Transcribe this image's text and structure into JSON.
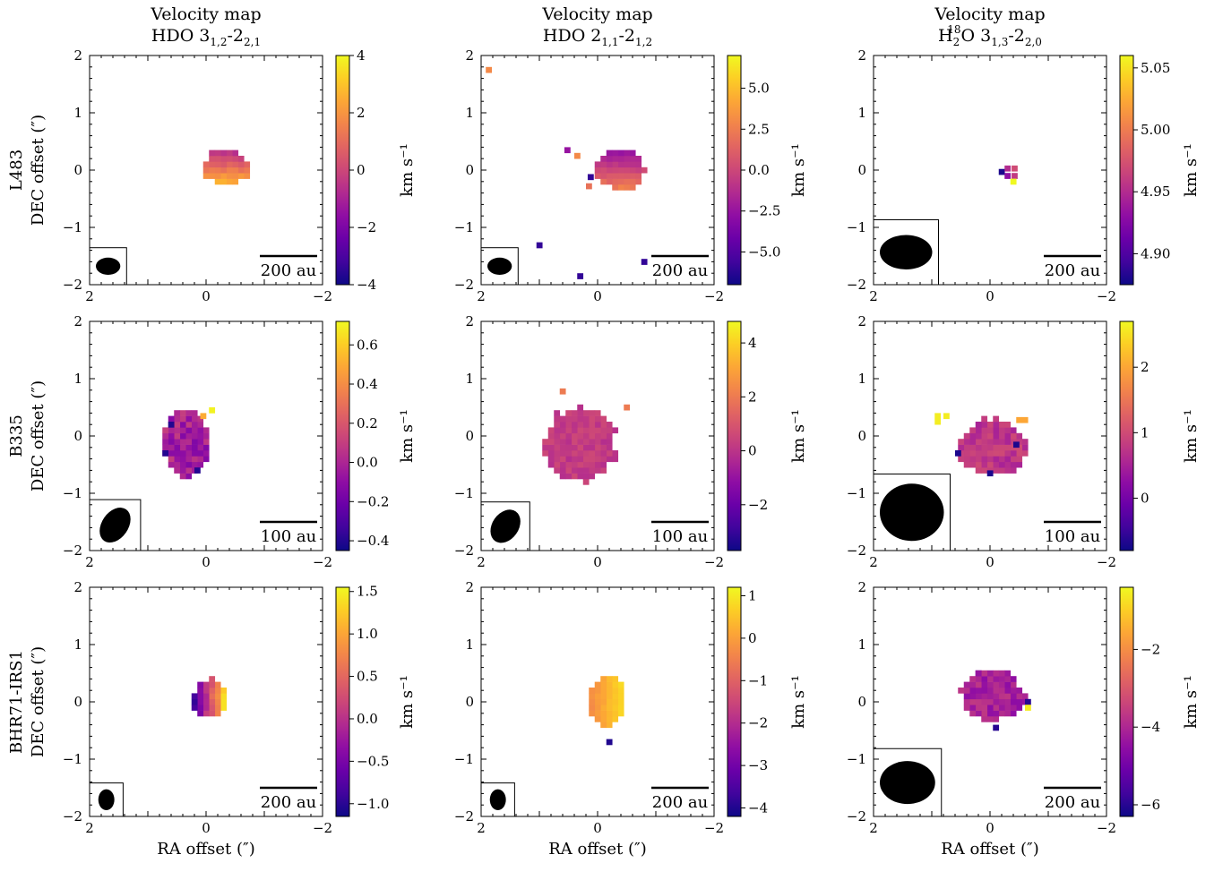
{
  "chart_data": {
    "type": "heatmap",
    "columns": [
      {
        "title_line1": "Velocity map",
        "title_line2_base": "HDO 3",
        "title_sub1": "1,2",
        "title_mid": "-2",
        "title_sub2": "2,1"
      },
      {
        "title_line1": "Velocity map",
        "title_line2_base": "HDO 2",
        "title_sub1": "1,1",
        "title_mid": "-2",
        "title_sub2": "1,2"
      },
      {
        "title_line1": "Velocity map",
        "title_line2_pre": "H",
        "title_sub0": "2",
        "title_sup0": "18",
        "title_line2_base": "O 3",
        "title_sub1": "1,3",
        "title_mid": "-2",
        "title_sub2": "2,0"
      }
    ],
    "rows": [
      {
        "source": "L483",
        "ylabel": "DEC offset (″)"
      },
      {
        "source": "B335",
        "ylabel": "DEC offset (″)"
      },
      {
        "source": "BHR71-IRS1",
        "ylabel": "DEC offset (″)"
      }
    ],
    "xlabel": "RA offset (″)",
    "colorbar_label": "km s⁻¹",
    "colormap": "plasma",
    "xlim": [
      2,
      -2
    ],
    "ylim": [
      -2,
      2
    ],
    "xticks": [
      2,
      0,
      -2
    ],
    "yticks": [
      2,
      1,
      0,
      -1,
      -2
    ],
    "panels": [
      {
        "row": 0,
        "col": 0,
        "scalebar": "200 au",
        "beam": {
          "major": 0.42,
          "minor": 0.3,
          "pa_deg": 90
        },
        "vmin": -4,
        "vmax": 4,
        "cbar_ticks": [
          "4",
          "2",
          "0",
          "−2",
          "−4"
        ],
        "cbar_values": [
          4,
          2,
          0,
          -2,
          -4
        ],
        "blobs": [
          {
            "cx": -0.35,
            "cy": 0.05,
            "rx": 0.38,
            "ry": 0.33,
            "gradient": "y",
            "low": -1,
            "high": 3
          }
        ],
        "pixels": []
      },
      {
        "row": 0,
        "col": 1,
        "scalebar": "200 au",
        "beam": {
          "major": 0.42,
          "minor": 0.3,
          "pa_deg": 90
        },
        "vmin": -7,
        "vmax": 7,
        "cbar_ticks": [
          "5.0",
          "2.5",
          "0.0",
          "−2.5",
          "−5.0"
        ],
        "cbar_values": [
          5,
          2.5,
          0,
          -2.5,
          -5
        ],
        "blobs": [
          {
            "cx": -0.4,
            "cy": 0.0,
            "rx": 0.42,
            "ry": 0.37,
            "gradient": "y",
            "low": -3,
            "high": 3
          }
        ],
        "pixels": [
          {
            "x": 1.87,
            "y": 1.75,
            "v": 3
          },
          {
            "x": 0.52,
            "y": 0.35,
            "v": -2.5
          },
          {
            "x": 0.35,
            "y": 0.25,
            "v": 3
          },
          {
            "x": 0.12,
            "y": -0.12,
            "v": -6
          },
          {
            "x": 0.15,
            "y": -0.28,
            "v": 2
          },
          {
            "x": 1.0,
            "y": -1.31,
            "v": -6
          },
          {
            "x": -0.8,
            "y": -1.6,
            "v": -6
          },
          {
            "x": 0.3,
            "y": -1.85,
            "v": -6
          }
        ]
      },
      {
        "row": 0,
        "col": 2,
        "scalebar": "200 au",
        "beam": {
          "major": 0.9,
          "minor": 0.6,
          "pa_deg": 90
        },
        "vmin": 4.875,
        "vmax": 5.06,
        "cbar_ticks": [
          "5.05",
          "5.00",
          "4.95",
          "4.90"
        ],
        "cbar_values": [
          5.05,
          5.0,
          4.95,
          4.9
        ],
        "blobs": [],
        "pixels": [
          {
            "x": -0.2,
            "y": -0.03,
            "v": 4.88
          },
          {
            "x": -0.3,
            "y": 0.03,
            "v": 4.95
          },
          {
            "x": -0.42,
            "y": 0.03,
            "v": 4.97
          },
          {
            "x": -0.3,
            "y": -0.1,
            "v": 4.93
          },
          {
            "x": -0.42,
            "y": -0.1,
            "v": 4.96
          },
          {
            "x": -0.4,
            "y": -0.2,
            "v": 5.06
          }
        ]
      },
      {
        "row": 1,
        "col": 0,
        "scalebar": "100 au",
        "beam": {
          "major": 0.66,
          "minor": 0.46,
          "pa_deg": 35
        },
        "vmin": -0.45,
        "vmax": 0.72,
        "cbar_ticks": [
          "0.6",
          "0.4",
          "0.2",
          "0.0",
          "−0.2",
          "−0.4"
        ],
        "cbar_values": [
          0.6,
          0.4,
          0.2,
          0.0,
          -0.2,
          -0.4
        ],
        "blobs": [
          {
            "cx": 0.35,
            "cy": -0.1,
            "rx": 0.42,
            "ry": 0.6,
            "gradient": "noise",
            "low": -0.15,
            "high": 0.1
          }
        ],
        "pixels": [
          {
            "x": -0.1,
            "y": 0.45,
            "v": 0.7
          },
          {
            "x": 0.05,
            "y": 0.35,
            "v": 0.5
          },
          {
            "x": 0.7,
            "y": -0.3,
            "v": -0.4
          },
          {
            "x": 0.6,
            "y": 0.2,
            "v": -0.4
          },
          {
            "x": 0.15,
            "y": -0.6,
            "v": -0.4
          }
        ]
      },
      {
        "row": 1,
        "col": 1,
        "scalebar": "100 au",
        "beam": {
          "major": 0.62,
          "minor": 0.46,
          "pa_deg": 35
        },
        "vmin": -3.7,
        "vmax": 4.8,
        "cbar_ticks": [
          "4",
          "2",
          "0",
          "−2"
        ],
        "cbar_values": [
          4,
          2,
          0,
          -2
        ],
        "blobs": [
          {
            "cx": 0.3,
            "cy": -0.15,
            "rx": 0.62,
            "ry": 0.65,
            "gradient": "noise",
            "low": -0.2,
            "high": 0.6
          }
        ],
        "pixels": [
          {
            "x": 0.6,
            "y": 0.78,
            "v": 2
          },
          {
            "x": -0.5,
            "y": 0.5,
            "v": 2
          }
        ]
      },
      {
        "row": 1,
        "col": 2,
        "scalebar": "100 au",
        "beam": {
          "major": 1.1,
          "minor": 1.0,
          "pa_deg": 90
        },
        "vmin": -0.8,
        "vmax": 2.7,
        "cbar_ticks": [
          "2",
          "1",
          "0"
        ],
        "cbar_values": [
          2,
          1,
          0
        ],
        "blobs": [
          {
            "cx": -0.05,
            "cy": -0.2,
            "rx": 0.6,
            "ry": 0.48,
            "gradient": "noise",
            "low": 0.5,
            "high": 1.0
          }
        ],
        "pixels": [
          {
            "x": 0.9,
            "y": 0.35,
            "v": 2.6
          },
          {
            "x": 0.75,
            "y": 0.35,
            "v": 2.6
          },
          {
            "x": 0.9,
            "y": 0.25,
            "v": 2.6
          },
          {
            "x": -0.6,
            "y": 0.28,
            "v": 2
          },
          {
            "x": -0.5,
            "y": 0.28,
            "v": 2
          },
          {
            "x": 0.55,
            "y": -0.3,
            "v": -0.7
          },
          {
            "x": 0.0,
            "y": -0.65,
            "v": -0.7
          },
          {
            "x": -0.45,
            "y": -0.15,
            "v": -0.7
          }
        ]
      },
      {
        "row": 2,
        "col": 0,
        "scalebar": "200 au",
        "beam": {
          "major": 0.36,
          "minor": 0.28,
          "pa_deg": 0
        },
        "vmin": -1.15,
        "vmax": 1.55,
        "cbar_ticks": [
          "1.5",
          "1.0",
          "0.5",
          "0.0",
          "−0.5",
          "−1.0"
        ],
        "cbar_values": [
          1.5,
          1.0,
          0.5,
          0.0,
          -0.5,
          -1.0
        ],
        "blobs": [
          {
            "cx": -0.05,
            "cy": 0.05,
            "rx": 0.28,
            "ry": 0.37,
            "gradient": "x",
            "low": -1.0,
            "high": 1.4
          }
        ],
        "pixels": []
      },
      {
        "row": 2,
        "col": 1,
        "scalebar": "200 au",
        "beam": {
          "major": 0.36,
          "minor": 0.28,
          "pa_deg": 0
        },
        "vmin": -4.2,
        "vmax": 1.2,
        "cbar_ticks": [
          "1",
          "0",
          "−1",
          "−2",
          "−3",
          "−4"
        ],
        "cbar_values": [
          1,
          0,
          -1,
          -2,
          -3,
          -4
        ],
        "blobs": [
          {
            "cx": -0.15,
            "cy": 0.0,
            "rx": 0.32,
            "ry": 0.45,
            "gradient": "x",
            "low": -0.4,
            "high": 0.9
          }
        ],
        "pixels": [
          {
            "x": -0.2,
            "y": -0.7,
            "v": -4
          }
        ]
      },
      {
        "row": 2,
        "col": 2,
        "scalebar": "200 au",
        "beam": {
          "major": 0.95,
          "minor": 0.75,
          "pa_deg": 90
        },
        "vmin": -6.3,
        "vmax": -0.4,
        "cbar_ticks": [
          "−2",
          "−4",
          "−6"
        ],
        "cbar_values": [
          -2,
          -4,
          -6
        ],
        "blobs": [
          {
            "cx": -0.05,
            "cy": 0.1,
            "rx": 0.55,
            "ry": 0.45,
            "gradient": "noise",
            "low": -4.6,
            "high": -3.6
          }
        ],
        "pixels": [
          {
            "x": -0.65,
            "y": 0.0,
            "v": -6
          },
          {
            "x": -0.65,
            "y": -0.1,
            "v": -0.6
          },
          {
            "x": -0.1,
            "y": -0.45,
            "v": -6
          },
          {
            "x": 0.2,
            "y": 0.5,
            "v": -4.4
          }
        ]
      }
    ]
  }
}
